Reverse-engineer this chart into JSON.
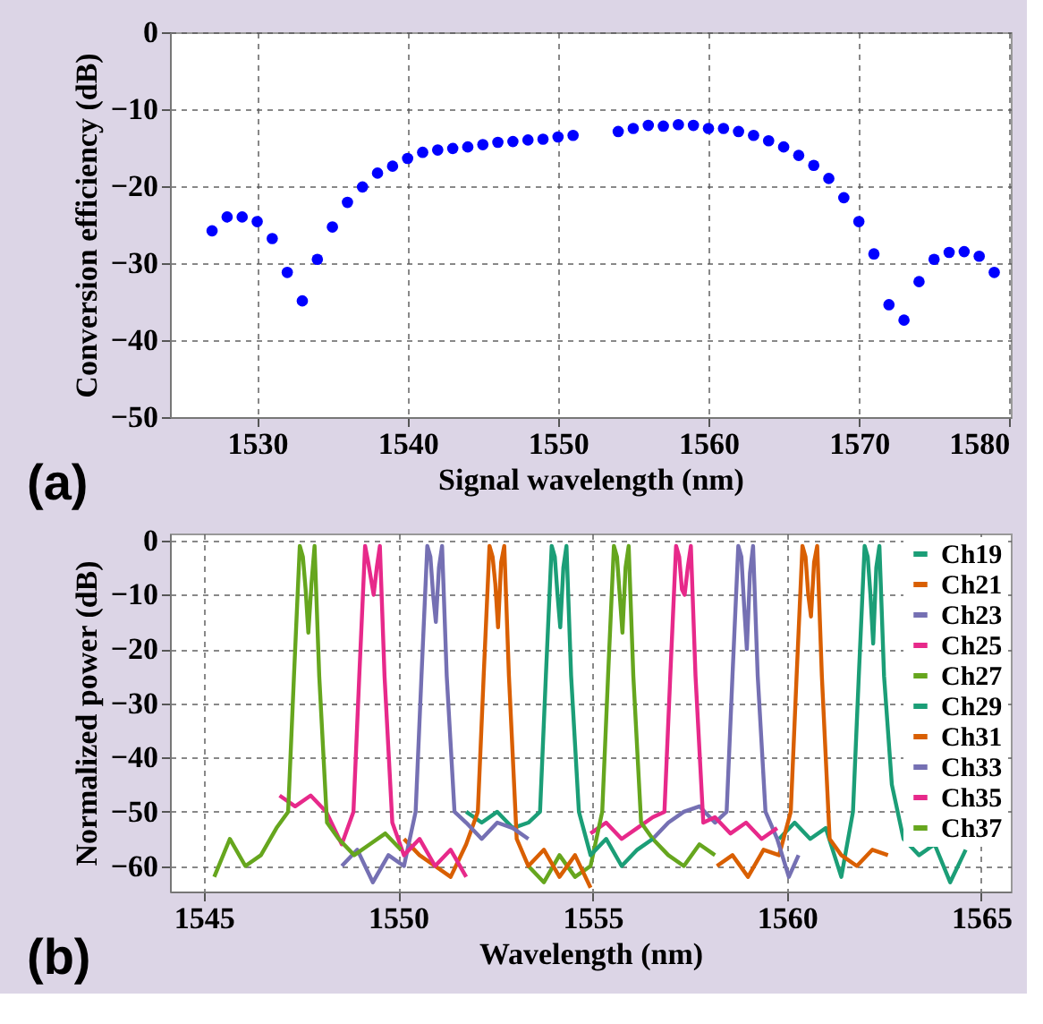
{
  "chart_data": [
    {
      "type": "scatter",
      "xlabel": "Signal wavelength (nm)",
      "ylabel": "Conversion efficiency (dB)",
      "annotations": [
        "(a)"
      ],
      "marker": "circle",
      "grid": true,
      "xlim": [
        1524.2,
        1580.1
      ],
      "ylim": [
        -50,
        0
      ],
      "xticks": [
        1530,
        1540,
        1550,
        1560,
        1570,
        1580
      ],
      "yticks": [
        -50,
        -40,
        -30,
        -20,
        -10,
        0
      ],
      "x": [
        1527,
        1528,
        1529,
        1530,
        1531,
        1532,
        1533,
        1534,
        1535,
        1536,
        1537,
        1538,
        1539,
        1540,
        1541,
        1542,
        1543,
        1544,
        1545,
        1546,
        1547,
        1548,
        1549,
        1550,
        1551,
        1554,
        1555,
        1556,
        1557,
        1558,
        1559,
        1560,
        1561,
        1562,
        1563,
        1564,
        1565,
        1566,
        1567,
        1568,
        1569,
        1570,
        1571,
        1572,
        1573,
        1574,
        1575,
        1576,
        1577,
        1578,
        1579
      ],
      "series": [
        {
          "color": "#0000ff",
          "values": [
            -25.8,
            -24,
            -24,
            -24.6,
            -26.8,
            -31.2,
            -34.9,
            -29.5,
            -25.3,
            -22.1,
            -20.1,
            -18.3,
            -17.4,
            -16.4,
            -15.6,
            -15.3,
            -15.1,
            -14.9,
            -14.6,
            -14.3,
            -14.2,
            -14.0,
            -13.9,
            -13.6,
            -13.4,
            -12.9,
            -12.5,
            -12.1,
            -12.2,
            -12.0,
            -12.1,
            -12.5,
            -12.5,
            -12.9,
            -13.4,
            -14.1,
            -14.9,
            -16.0,
            -17.3,
            -19.0,
            -21.5,
            -24.6,
            -28.8,
            -35.4,
            -37.4,
            -32.4,
            -29.5,
            -28.6,
            -28.5,
            -29.1,
            -31.2
          ]
        }
      ]
    },
    {
      "type": "line",
      "xlabel": "Wavelength (nm)",
      "ylabel": "Normalized power (dB)",
      "annotations": [
        "(b)"
      ],
      "grid": true,
      "legend": "top right",
      "line_style": "solid",
      "marker": "none",
      "xlim": [
        1544.13,
        1565.76
      ],
      "ylim": [
        -64.7,
        1.3
      ],
      "xticks": [
        1545,
        1550,
        1555,
        1560,
        1565
      ],
      "yticks": [
        -60,
        -50,
        -40,
        -30,
        -20,
        -10,
        0
      ],
      "series": [
        {
          "name": "Ch19",
          "color": "#1b9e77",
          "x": [
            1559.8,
            1560.2,
            1560.6,
            1561.0,
            1561.4,
            1561.7,
            1561.85,
            1562.0,
            1562.08,
            1562.15,
            1562.22,
            1562.3,
            1562.38,
            1562.5,
            1562.7,
            1563.0,
            1563.4,
            1563.8,
            1564.2,
            1564.6
          ],
          "values": [
            -55,
            -52,
            -55,
            -53,
            -62,
            -50,
            -25,
            -1,
            -3,
            -10,
            -19,
            -5,
            -1,
            -25,
            -45,
            -55,
            -58,
            -56,
            -63,
            -57
          ]
        },
        {
          "name": "Ch21",
          "color": "#d95f02",
          "x": [
            1558.2,
            1558.6,
            1559.0,
            1559.4,
            1559.8,
            1560.1,
            1560.25,
            1560.4,
            1560.48,
            1560.55,
            1560.62,
            1560.7,
            1560.78,
            1560.9,
            1561.1,
            1561.4,
            1561.8,
            1562.2,
            1562.6
          ],
          "values": [
            -60,
            -58,
            -62,
            -57,
            -58,
            -50,
            -25,
            -1,
            -3,
            -10,
            -14,
            -4,
            -1,
            -25,
            -55,
            -58,
            -60,
            -57,
            -58
          ]
        },
        {
          "name": "Ch23",
          "color": "#7570b3",
          "x": [
            1556.55,
            1556.95,
            1557.35,
            1557.75,
            1558.15,
            1558.45,
            1558.6,
            1558.75,
            1558.83,
            1558.9,
            1558.97,
            1559.05,
            1559.13,
            1559.25,
            1559.45,
            1559.75,
            1560.05,
            1560.3
          ],
          "values": [
            -55,
            -52,
            -50,
            -49,
            -52,
            -50,
            -25,
            -1,
            -3,
            -12,
            -20,
            -6,
            -1,
            -25,
            -50,
            -55,
            -62,
            -58
          ]
        },
        {
          "name": "Ch25",
          "color": "#e7298a",
          "x": [
            1554.95,
            1555.35,
            1555.75,
            1556.15,
            1556.55,
            1556.85,
            1557.0,
            1557.15,
            1557.23,
            1557.3,
            1557.37,
            1557.45,
            1557.53,
            1557.65,
            1557.85,
            1558.15,
            1558.55,
            1558.95,
            1559.35,
            1559.75
          ],
          "values": [
            -54,
            -52,
            -55,
            -53,
            -51,
            -50,
            -25,
            -1,
            -3,
            -9,
            -10,
            -5,
            -1,
            -25,
            -52,
            -51,
            -54,
            -52,
            -55,
            -53
          ]
        },
        {
          "name": "Ch27",
          "color": "#66a61e",
          "x": [
            1553.35,
            1553.75,
            1554.15,
            1554.55,
            1554.95,
            1555.25,
            1555.4,
            1555.55,
            1555.63,
            1555.7,
            1555.77,
            1555.85,
            1555.93,
            1556.05,
            1556.25,
            1556.55,
            1556.95,
            1557.35,
            1557.75,
            1558.15
          ],
          "values": [
            -60,
            -63,
            -58,
            -62,
            -60,
            -50,
            -25,
            -1,
            -3,
            -10,
            -17,
            -5,
            -1,
            -25,
            -52,
            -55,
            -58,
            -60,
            -56,
            -58
          ]
        },
        {
          "name": "Ch29",
          "color": "#1b9e77",
          "x": [
            1551.75,
            1552.15,
            1552.55,
            1552.95,
            1553.35,
            1553.65,
            1553.8,
            1553.95,
            1554.03,
            1554.1,
            1554.17,
            1554.25,
            1554.33,
            1554.45,
            1554.65,
            1554.95,
            1555.35,
            1555.75,
            1556.15,
            1556.55
          ],
          "values": [
            -50,
            -52,
            -50,
            -53,
            -52,
            -50,
            -25,
            -1,
            -3,
            -10,
            -16,
            -5,
            -1,
            -25,
            -50,
            -58,
            -55,
            -60,
            -57,
            -55
          ]
        },
        {
          "name": "Ch31",
          "color": "#d95f02",
          "x": [
            1550.15,
            1550.55,
            1550.95,
            1551.35,
            1551.75,
            1552.05,
            1552.2,
            1552.35,
            1552.43,
            1552.5,
            1552.57,
            1552.65,
            1552.73,
            1552.85,
            1553.05,
            1553.35,
            1553.75,
            1554.15,
            1554.55,
            1554.95
          ],
          "values": [
            -55,
            -58,
            -60,
            -62,
            -56,
            -50,
            -25,
            -1,
            -3,
            -8,
            -16,
            -4,
            -1,
            -25,
            -55,
            -60,
            -57,
            -62,
            -58,
            -64
          ]
        },
        {
          "name": "Ch33",
          "color": "#7570b3",
          "x": [
            1548.55,
            1548.95,
            1549.35,
            1549.75,
            1550.15,
            1550.45,
            1550.6,
            1550.75,
            1550.83,
            1550.9,
            1550.97,
            1551.05,
            1551.13,
            1551.25,
            1551.45,
            1551.75,
            1552.15,
            1552.55,
            1552.95,
            1553.35
          ],
          "values": [
            -60,
            -57,
            -63,
            -58,
            -60,
            -50,
            -25,
            -1,
            -3,
            -10,
            -15,
            -5,
            -1,
            -25,
            -50,
            -52,
            -55,
            -52,
            -53,
            -55
          ]
        },
        {
          "name": "Ch35",
          "color": "#e7298a",
          "x": [
            1546.95,
            1547.35,
            1547.75,
            1548.15,
            1548.55,
            1548.85,
            1549.0,
            1549.15,
            1549.23,
            1549.3,
            1549.37,
            1549.45,
            1549.53,
            1549.65,
            1549.85,
            1550.15,
            1550.55,
            1550.95,
            1551.35,
            1551.75
          ],
          "values": [
            -47,
            -49,
            -47,
            -50,
            -56,
            -50,
            -25,
            -1,
            -4,
            -7,
            -10,
            -5,
            -1,
            -25,
            -52,
            -58,
            -55,
            -60,
            -57,
            -62
          ]
        },
        {
          "name": "Ch37",
          "color": "#66a61e",
          "x": [
            1545.27,
            1545.67,
            1546.07,
            1546.47,
            1546.87,
            1547.17,
            1547.32,
            1547.47,
            1547.55,
            1547.62,
            1547.69,
            1547.77,
            1547.85,
            1547.97,
            1548.17,
            1548.47,
            1548.87,
            1549.27,
            1549.67,
            1550.07
          ],
          "values": [
            -62,
            -55,
            -60,
            -58,
            -53,
            -50,
            -25,
            -1,
            -3,
            -9,
            -17,
            -8,
            -1,
            -25,
            -52,
            -55,
            -58,
            -56,
            -54,
            -57
          ]
        }
      ]
    }
  ]
}
